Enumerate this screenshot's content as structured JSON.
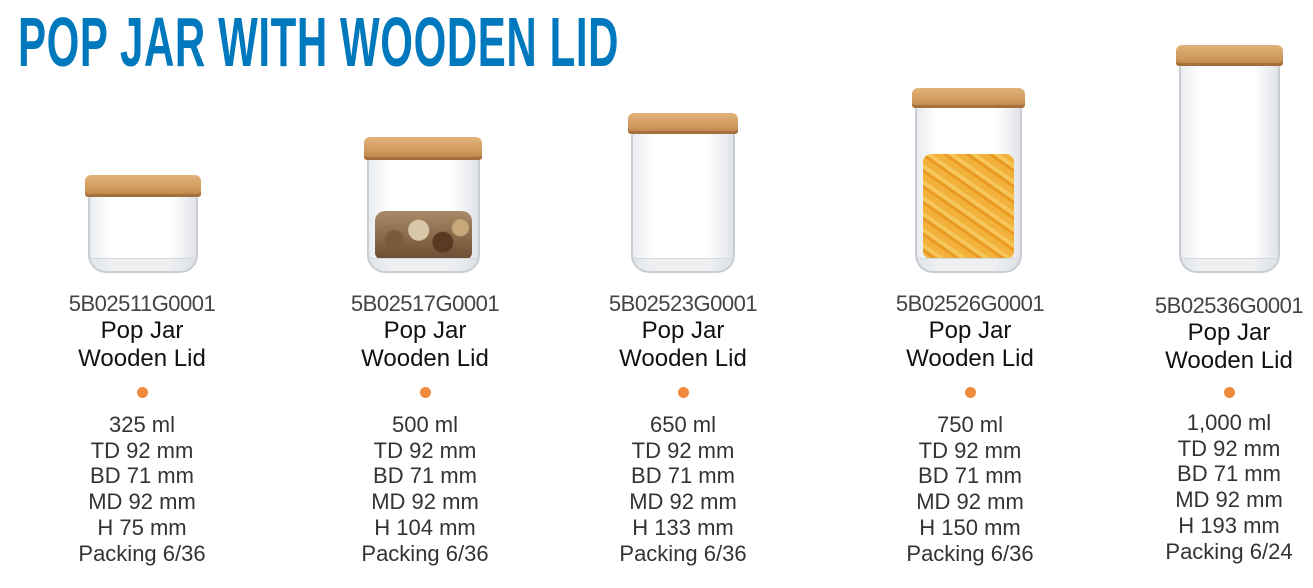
{
  "title": "POP JAR WITH WOODEN LID",
  "accent_color": "#0078be",
  "bullet_color": "#f08a3c",
  "products": [
    {
      "code": "5B02511G0001",
      "name_line1": "Pop Jar",
      "name_line2": "Wooden Lid",
      "capacity": "325 ml",
      "td": "TD 92 mm",
      "bd": "BD 71 mm",
      "md": "MD 92 mm",
      "h": "H 75 mm",
      "packing": "Packing 6/36",
      "contents": "empty"
    },
    {
      "code": "5B02517G0001",
      "name_line1": "Pop Jar",
      "name_line2": "Wooden Lid",
      "capacity": "500 ml",
      "td": "TD 92 mm",
      "bd": "BD 71 mm",
      "md": "MD 92 mm",
      "h": "H 104 mm",
      "packing": "Packing 6/36",
      "contents": "seashells"
    },
    {
      "code": "5B02523G0001",
      "name_line1": "Pop Jar",
      "name_line2": "Wooden Lid",
      "capacity": "650 ml",
      "td": "TD 92 mm",
      "bd": "BD 71 mm",
      "md": "MD 92 mm",
      "h": "H 133 mm",
      "packing": "Packing 6/36",
      "contents": "empty"
    },
    {
      "code": "5B02526G0001",
      "name_line1": "Pop Jar",
      "name_line2": "Wooden Lid",
      "capacity": "750 ml",
      "td": "TD 92 mm",
      "bd": "BD 71 mm",
      "md": "MD 92 mm",
      "h": "H 150 mm",
      "packing": "Packing 6/36",
      "contents": "pasta"
    },
    {
      "code": "5B02536G0001",
      "name_line1": "Pop Jar",
      "name_line2": "Wooden Lid",
      "capacity": "1,000 ml",
      "td": "TD 92 mm",
      "bd": "BD 71 mm",
      "md": "MD 92 mm",
      "h": "H 193 mm",
      "packing": "Packing 6/24",
      "contents": "empty"
    }
  ]
}
